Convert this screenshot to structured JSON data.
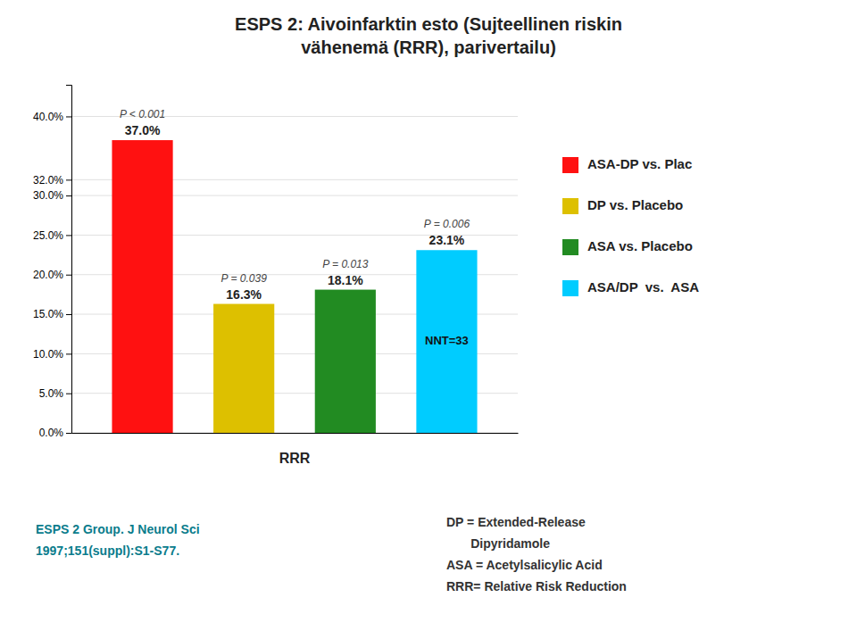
{
  "chart_data": {
    "type": "bar",
    "title": "ESPS 2: Aivoinfarktin esto (Sujteellinen riskin\nvähenemä (RRR), parivertailu)",
    "x_label": "RRR",
    "categories": [
      "ASA-DP vs. Plac",
      "DP vs. Placebo",
      "ASA vs. Placebo",
      "ASA/DP  vs.  ASA"
    ],
    "values": [
      0.37,
      0.163,
      0.181,
      0.231
    ],
    "value_labels": [
      "37.0%",
      "16.3%",
      "18.1%",
      "23.1%"
    ],
    "colors": [
      "#FF1111",
      "#DDC000",
      "#228B22",
      "#00CCFF"
    ],
    "bar_notes": [
      "P < 0.001",
      "P = 0.039",
      "P = 0.013",
      "P = 0.006"
    ],
    "annotations": [
      {
        "text": "NNT=33",
        "category": "ASA/DP  vs.  ASA"
      }
    ],
    "ylim": [
      0,
      0.44
    ],
    "yticks": [
      {
        "value": 0.0,
        "label": "0.0%"
      },
      {
        "value": 0.05,
        "label": "5.0%"
      },
      {
        "value": 0.1,
        "label": "10.0%"
      },
      {
        "value": 0.15,
        "label": "15.0%"
      },
      {
        "value": 0.2,
        "label": "20.0%"
      },
      {
        "value": 0.25,
        "label": "25.0%"
      },
      {
        "value": 0.3,
        "label": "30.0%"
      },
      {
        "value": 0.32,
        "label": "32.0%"
      },
      {
        "value": 0.4,
        "label": "40.0%"
      }
    ],
    "grid": true,
    "legend": "right",
    "data_labels": true,
    "tick_labels": "y",
    "source": [
      "ESPS 2 Group. J Neurol Sci",
      "1997;151(suppl):S1-S77."
    ],
    "notes": [
      "DP = Extended-Release",
      "       Dipyridamole",
      "ASA = Acetylsalicylic Acid",
      "RRR= Relative Risk Reduction"
    ]
  }
}
